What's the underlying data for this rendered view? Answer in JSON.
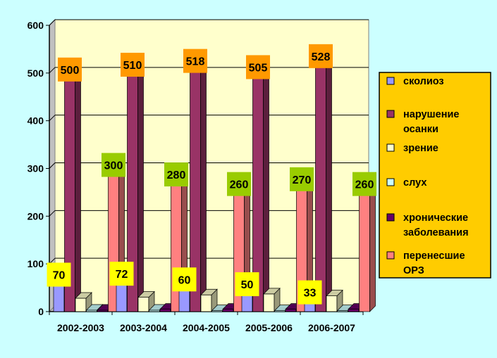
{
  "chart_data": {
    "type": "bar",
    "title": "",
    "xlabel": "",
    "ylabel": "",
    "ylim": [
      0,
      600
    ],
    "yticks": [
      0,
      100,
      200,
      300,
      400,
      500,
      600
    ],
    "grid": true,
    "legend_position": "right",
    "three_d": true,
    "categories": [
      "2002-2003",
      "2003-2004",
      "2004-2005",
      "2005-2006",
      "2006-2007"
    ],
    "series": [
      {
        "name": "сколиоз",
        "color": "#9999ff",
        "values": [
          70,
          72,
          60,
          50,
          33
        ],
        "labels": [
          "70",
          "72",
          "60",
          "50",
          "33"
        ],
        "label_color": "#ffff00"
      },
      {
        "name": "нарушение осанки",
        "color": "#993366",
        "values": [
          500,
          510,
          518,
          505,
          528
        ],
        "labels": [
          "500",
          "510",
          "518",
          "505",
          "528"
        ],
        "label_color": "#ff9900"
      },
      {
        "name": "зрение",
        "color": "#ffffcc",
        "values": [
          28,
          30,
          35,
          37,
          33
        ]
      },
      {
        "name": "слух",
        "color": "#ccffff",
        "values": [
          3,
          3,
          2,
          2,
          2
        ]
      },
      {
        "name": "хронические заболевания",
        "color": "#660066",
        "values": [
          3,
          5,
          5,
          5,
          5
        ]
      },
      {
        "name": "перенесшие ОРЗ",
        "color": "#ff8080",
        "values": [
          300,
          280,
          260,
          270,
          260
        ],
        "labels": [
          "300",
          "280",
          "260",
          "270",
          "260"
        ],
        "label_color": "#99cc00"
      }
    ]
  },
  "colors": {
    "background": "#ccffff",
    "plot_area": "#ffffcc",
    "legend_bg": "#ffcc00"
  }
}
